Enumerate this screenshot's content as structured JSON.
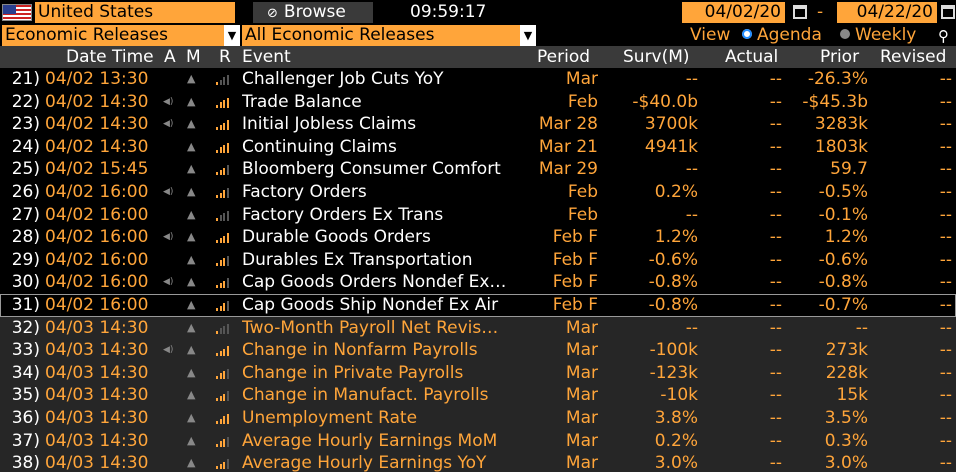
{
  "topbar": {
    "country": "United States",
    "browse_label": "Browse",
    "time": "09:59:17",
    "start_date": "04/02/20",
    "end_date": "04/22/20",
    "date_separator": "-"
  },
  "filters": {
    "category": "Economic Releases",
    "release_set": "All Economic Releases",
    "view_label": "View",
    "view_options": [
      "Agenda",
      "Weekly"
    ],
    "view_selected": "Agenda"
  },
  "columns": {
    "datetime": "Date Time",
    "a": "A",
    "m": "M",
    "r": "R",
    "event": "Event",
    "period": "Period",
    "survey": "Surv(M)",
    "actual": "Actual",
    "prior": "Prior",
    "revised": "Revised"
  },
  "colors": {
    "accent": "#ffa53a",
    "header_bg": "#3a3a3a"
  },
  "rows": [
    {
      "n": "21)",
      "dt": "04/02 13:30",
      "spk": false,
      "rel": 1,
      "event": "Challenger Job Cuts YoY",
      "period": "Mar",
      "surv": "--",
      "actual": "--",
      "prior": "-26.3%",
      "revised": "--",
      "hl": false
    },
    {
      "n": "22)",
      "dt": "04/02 14:30",
      "spk": true,
      "rel": 4,
      "event": "Trade Balance",
      "period": "Feb",
      "surv": "-$40.0b",
      "actual": "--",
      "prior": "-$45.3b",
      "revised": "--",
      "hl": false
    },
    {
      "n": "23)",
      "dt": "04/02 14:30",
      "spk": true,
      "rel": 4,
      "event": "Initial Jobless Claims",
      "period": "Mar 28",
      "surv": "3700k",
      "actual": "--",
      "prior": "3283k",
      "revised": "--",
      "hl": false
    },
    {
      "n": "24)",
      "dt": "04/02 14:30",
      "spk": false,
      "rel": 4,
      "event": "Continuing Claims",
      "period": "Mar 21",
      "surv": "4941k",
      "actual": "--",
      "prior": "1803k",
      "revised": "--",
      "hl": false
    },
    {
      "n": "25)",
      "dt": "04/02 15:45",
      "spk": false,
      "rel": 3,
      "event": "Bloomberg Consumer Comfort",
      "period": "Mar 29",
      "surv": "--",
      "actual": "--",
      "prior": "59.7",
      "revised": "--",
      "hl": false
    },
    {
      "n": "26)",
      "dt": "04/02 16:00",
      "spk": true,
      "rel": 3,
      "event": "Factory Orders",
      "period": "Feb",
      "surv": "0.2%",
      "actual": "--",
      "prior": "-0.5%",
      "revised": "--",
      "hl": false
    },
    {
      "n": "27)",
      "dt": "04/02 16:00",
      "spk": false,
      "rel": 1,
      "event": "Factory Orders Ex Trans",
      "period": "Feb",
      "surv": "--",
      "actual": "--",
      "prior": "-0.1%",
      "revised": "--",
      "hl": false
    },
    {
      "n": "28)",
      "dt": "04/02 16:00",
      "spk": true,
      "rel": 4,
      "event": "Durable Goods Orders",
      "period": "Feb F",
      "surv": "1.2%",
      "actual": "--",
      "prior": "1.2%",
      "revised": "--",
      "hl": false
    },
    {
      "n": "29)",
      "dt": "04/02 16:00",
      "spk": false,
      "rel": 3,
      "event": "Durables Ex Transportation",
      "period": "Feb F",
      "surv": "-0.6%",
      "actual": "--",
      "prior": "-0.6%",
      "revised": "--",
      "hl": false
    },
    {
      "n": "30)",
      "dt": "04/02 16:00",
      "spk": true,
      "rel": 3,
      "event": "Cap Goods Orders Nondef Ex…",
      "period": "Feb F",
      "surv": "-0.8%",
      "actual": "--",
      "prior": "-0.8%",
      "revised": "--",
      "hl": false
    },
    {
      "n": "31)",
      "dt": "04/02 16:00",
      "spk": false,
      "rel": 3,
      "event": "Cap Goods Ship Nondef Ex Air",
      "period": "Feb F",
      "surv": "-0.8%",
      "actual": "--",
      "prior": "-0.7%",
      "revised": "--",
      "hl": false,
      "selected": true
    },
    {
      "n": "32)",
      "dt": "04/03 14:30",
      "spk": false,
      "rel": 1,
      "event": "Two-Month Payroll Net Revis…",
      "period": "Mar",
      "surv": "--",
      "actual": "--",
      "prior": "--",
      "revised": "--",
      "hl": true
    },
    {
      "n": "33)",
      "dt": "04/03 14:30",
      "spk": true,
      "rel": 4,
      "event": "Change in Nonfarm Payrolls",
      "period": "Mar",
      "surv": "-100k",
      "actual": "--",
      "prior": "273k",
      "revised": "--",
      "hl": true
    },
    {
      "n": "34)",
      "dt": "04/03 14:30",
      "spk": false,
      "rel": 3,
      "event": "Change in Private Payrolls",
      "period": "Mar",
      "surv": "-123k",
      "actual": "--",
      "prior": "228k",
      "revised": "--",
      "hl": true
    },
    {
      "n": "35)",
      "dt": "04/03 14:30",
      "spk": false,
      "rel": 3,
      "event": "Change in Manufact. Payrolls",
      "period": "Mar",
      "surv": "-10k",
      "actual": "--",
      "prior": "15k",
      "revised": "--",
      "hl": true
    },
    {
      "n": "36)",
      "dt": "04/03 14:30",
      "spk": false,
      "rel": 4,
      "event": "Unemployment Rate",
      "period": "Mar",
      "surv": "3.8%",
      "actual": "--",
      "prior": "3.5%",
      "revised": "--",
      "hl": true
    },
    {
      "n": "37)",
      "dt": "04/03 14:30",
      "spk": false,
      "rel": 3,
      "event": "Average Hourly Earnings MoM",
      "period": "Mar",
      "surv": "0.2%",
      "actual": "--",
      "prior": "0.3%",
      "revised": "--",
      "hl": true
    },
    {
      "n": "38)",
      "dt": "04/03 14:30",
      "spk": false,
      "rel": 3,
      "event": "Average Hourly Earnings YoY",
      "period": "Mar",
      "surv": "3.0%",
      "actual": "--",
      "prior": "3.0%",
      "revised": "--",
      "hl": true
    }
  ]
}
